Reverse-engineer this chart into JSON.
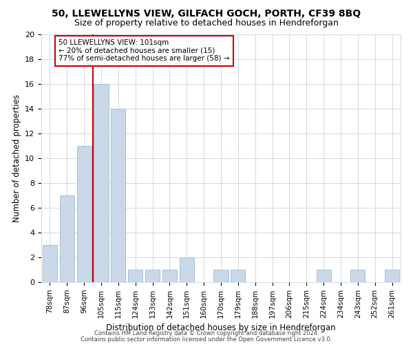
{
  "title": "50, LLEWELLYNS VIEW, GILFACH GOCH, PORTH, CF39 8BQ",
  "subtitle": "Size of property relative to detached houses in Hendreforgan",
  "xlabel": "Distribution of detached houses by size in Hendreforgan",
  "ylabel": "Number of detached properties",
  "bar_labels": [
    "78sqm",
    "87sqm",
    "96sqm",
    "105sqm",
    "115sqm",
    "124sqm",
    "133sqm",
    "142sqm",
    "151sqm",
    "160sqm",
    "170sqm",
    "179sqm",
    "188sqm",
    "197sqm",
    "206sqm",
    "215sqm",
    "224sqm",
    "234sqm",
    "243sqm",
    "252sqm",
    "261sqm"
  ],
  "bar_values": [
    3,
    7,
    11,
    16,
    14,
    1,
    1,
    1,
    2,
    0,
    1,
    1,
    0,
    0,
    0,
    0,
    1,
    0,
    1,
    0,
    1
  ],
  "bar_color": "#c8d8e8",
  "bar_edge_color": "#a8c0d4",
  "vline_color": "#cc0000",
  "annotation_title": "50 LLEWELLYNS VIEW: 101sqm",
  "annotation_line1": "← 20% of detached houses are smaller (15)",
  "annotation_line2": "77% of semi-detached houses are larger (58) →",
  "annotation_box_color": "white",
  "annotation_box_edge": "#cc0000",
  "ylim": [
    0,
    20
  ],
  "yticks": [
    0,
    2,
    4,
    6,
    8,
    10,
    12,
    14,
    16,
    18,
    20
  ],
  "footer1": "Contains HM Land Registry data © Crown copyright and database right 2024.",
  "footer2": "Contains public sector information licensed under the Open Government Licence v3.0.",
  "background_color": "#ffffff",
  "grid_color": "#d0d8e4",
  "title_fontsize": 10,
  "subtitle_fontsize": 9
}
